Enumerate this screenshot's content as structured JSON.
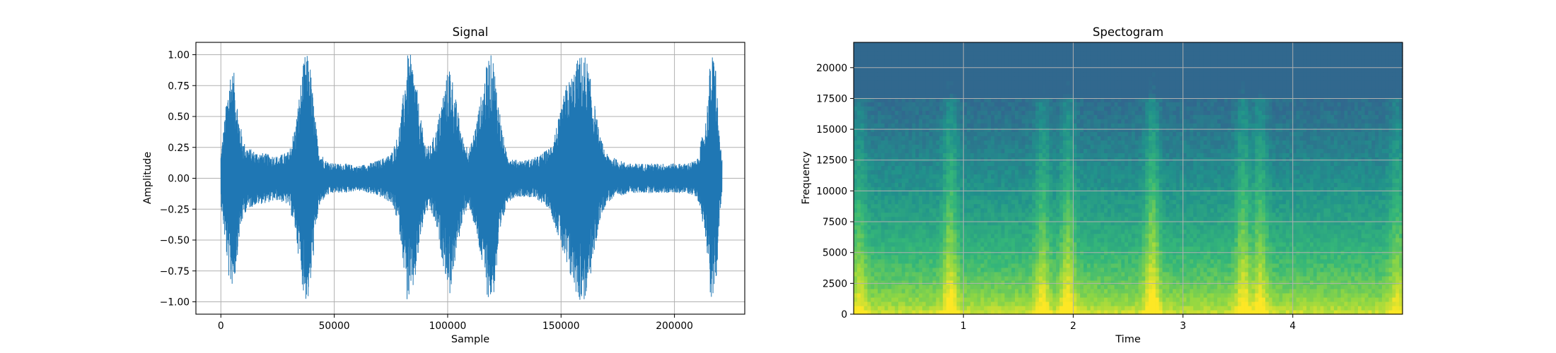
{
  "chart_data": [
    {
      "type": "line",
      "title": "Signal",
      "xlabel": "Sample",
      "ylabel": "Amplitude",
      "xlim": [
        -11000,
        231000
      ],
      "ylim": [
        -1.1,
        1.1
      ],
      "xticks": [
        0,
        50000,
        100000,
        150000,
        200000
      ],
      "xtick_labels": [
        "0",
        "50000",
        "100000",
        "150000",
        "200000"
      ],
      "yticks": [
        -1.0,
        -0.75,
        -0.5,
        -0.25,
        0.0,
        0.25,
        0.5,
        0.75,
        1.0
      ],
      "ytick_labels": [
        "−1.00",
        "−0.75",
        "−0.50",
        "−0.25",
        "0.00",
        "0.25",
        "0.50",
        "0.75",
        "1.00"
      ],
      "grid": true,
      "color": "#1f77b4",
      "series": [
        {
          "x": [
            0,
            2000,
            4000,
            6000,
            8000,
            10000,
            12000,
            15000,
            20000,
            25000,
            30000,
            33000,
            35000,
            37000,
            39000,
            41000,
            43000,
            46000,
            50000,
            55000,
            60000,
            65000,
            70000,
            75000,
            78000,
            80000,
            82000,
            84000,
            86000,
            88000,
            90000,
            92000,
            95000,
            98000,
            101000,
            104000,
            107000,
            110000,
            113000,
            116000,
            118000,
            120000,
            122000,
            124000,
            126000,
            130000,
            135000,
            140000,
            145000,
            150000,
            152000,
            155000,
            158000,
            161000,
            164000,
            167000,
            170000,
            175000,
            180000,
            185000,
            190000,
            195000,
            200000,
            205000,
            210000,
            214000,
            216000,
            218000,
            220000,
            221000
          ],
          "envelope": [
            0.2,
            0.55,
            0.9,
            0.85,
            0.5,
            0.3,
            0.25,
            0.22,
            0.2,
            0.18,
            0.22,
            0.45,
            0.75,
            1.0,
            1.0,
            0.6,
            0.25,
            0.15,
            0.12,
            0.12,
            0.1,
            0.12,
            0.15,
            0.2,
            0.35,
            0.6,
            1.0,
            1.0,
            0.8,
            0.5,
            0.3,
            0.25,
            0.4,
            0.7,
            0.95,
            0.6,
            0.3,
            0.25,
            0.5,
            0.8,
            1.0,
            1.0,
            0.7,
            0.4,
            0.2,
            0.15,
            0.15,
            0.18,
            0.25,
            0.55,
            0.75,
            0.85,
            1.0,
            1.0,
            0.7,
            0.35,
            0.2,
            0.15,
            0.12,
            0.12,
            0.12,
            0.12,
            0.12,
            0.12,
            0.15,
            0.5,
            1.0,
            1.0,
            0.3,
            0.15
          ]
        }
      ]
    },
    {
      "type": "heatmap",
      "title": "Spectogram",
      "xlabel": "Time",
      "ylabel": "Frequency",
      "xlim": [
        0.0,
        5.0
      ],
      "ylim": [
        0,
        22050
      ],
      "xticks": [
        1,
        2,
        3,
        4
      ],
      "xtick_labels": [
        "1",
        "2",
        "3",
        "4"
      ],
      "yticks": [
        0,
        2500,
        5000,
        7500,
        10000,
        12500,
        15000,
        17500,
        20000
      ],
      "ytick_labels": [
        "0",
        "2500",
        "5000",
        "7500",
        "10000",
        "12500",
        "15000",
        "17500",
        "20000"
      ],
      "grid": true,
      "colormap": "viridis",
      "colormap_stops": [
        "#31688e",
        "#21918c",
        "#35b779",
        "#90d743",
        "#fde725"
      ],
      "energy_events": [
        {
          "time": 0.05,
          "strength": 0.6
        },
        {
          "time": 0.88,
          "strength": 0.9
        },
        {
          "time": 1.72,
          "strength": 0.75
        },
        {
          "time": 1.95,
          "strength": 0.85
        },
        {
          "time": 2.72,
          "strength": 1.0
        },
        {
          "time": 3.55,
          "strength": 0.85
        },
        {
          "time": 3.7,
          "strength": 0.8
        },
        {
          "time": 4.95,
          "strength": 0.6
        }
      ]
    }
  ]
}
